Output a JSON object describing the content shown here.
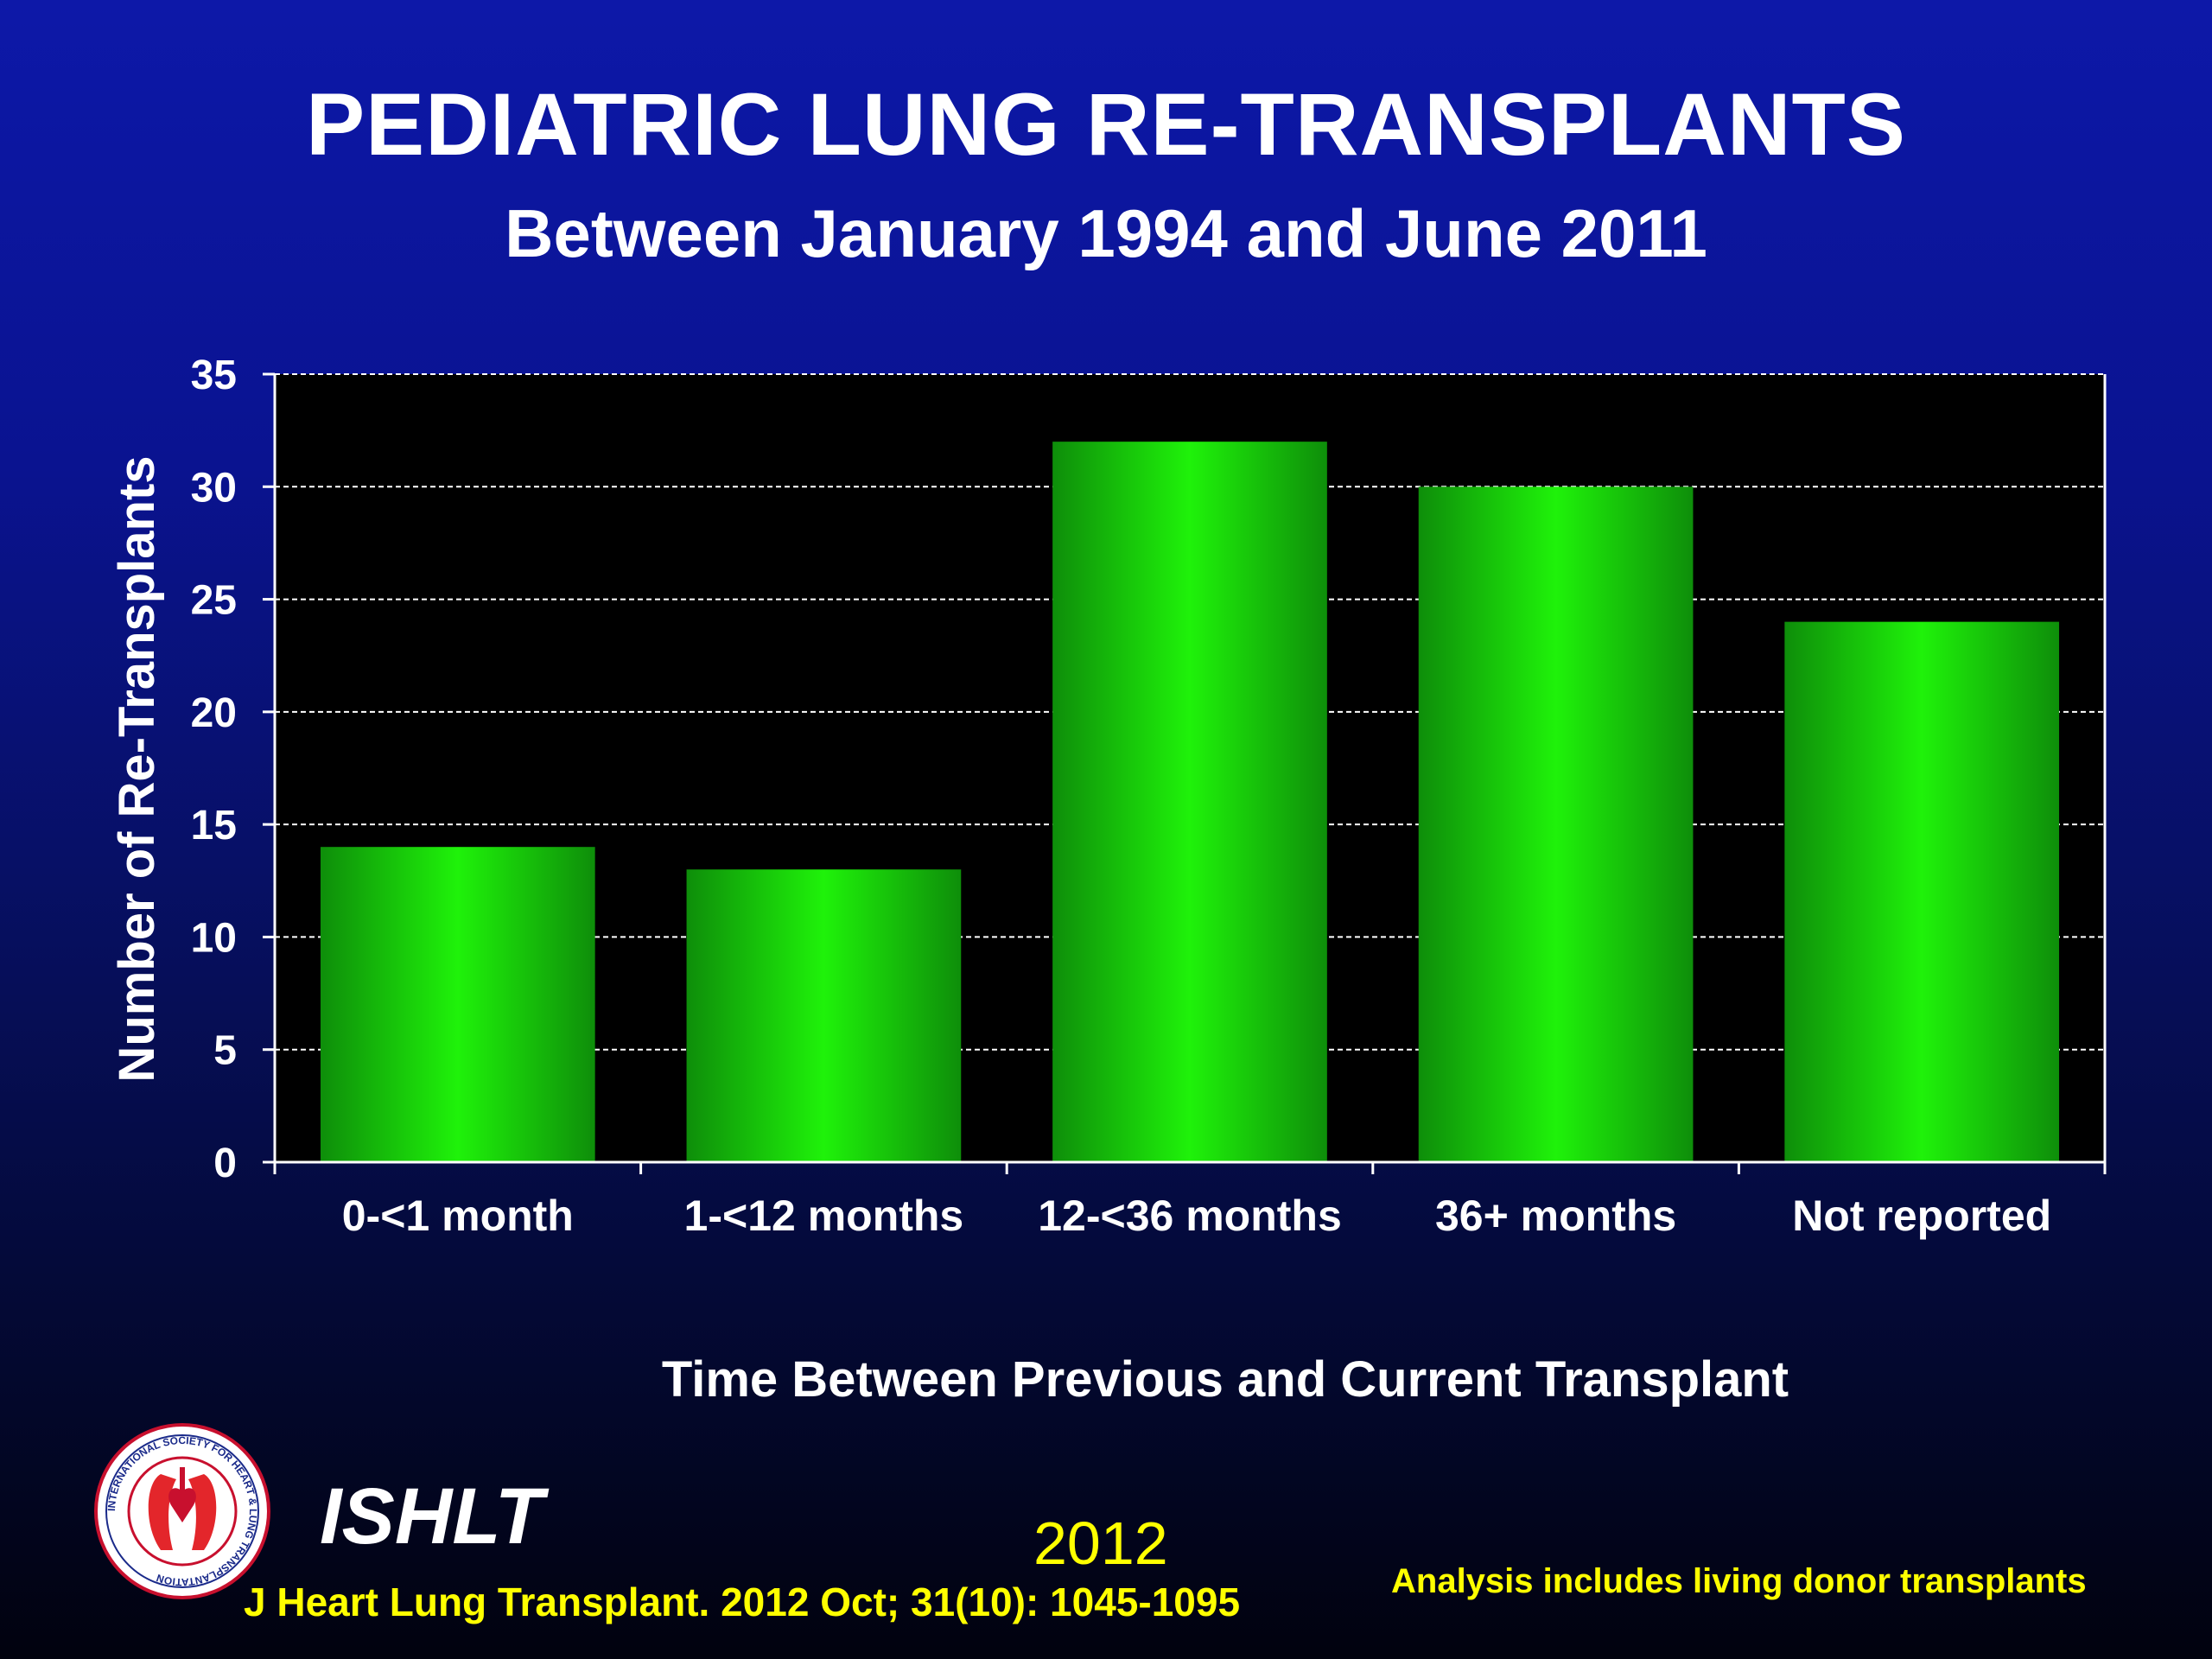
{
  "title": "PEDIATRIC LUNG RE-TRANSPLANTS",
  "subtitle": "Between January 1994 and June 2011",
  "chart_data": {
    "type": "bar",
    "categories": [
      "0-<1 month",
      "1-<12 months",
      "12-<36 months",
      "36+ months",
      "Not reported"
    ],
    "values": [
      14,
      13,
      32,
      30,
      24
    ],
    "xlabel": "Time Between Previous and Current Transplant",
    "ylabel": "Number of Re-Transplants",
    "ylim": [
      0,
      35
    ],
    "yticks": [
      0,
      5,
      10,
      15,
      20,
      25,
      30,
      35
    ],
    "grid": true,
    "plot_background": "#000000",
    "bar_color": "#1ff20a"
  },
  "footer": {
    "logo_name": "ISHLT",
    "logo_text": "INTERNATIONAL SOCIETY FOR HEART & LUNG TRANSPLANTATION",
    "year": "2012",
    "citation": "J Heart Lung Transplant.  2012 Oct; 31(10): 1045-1095",
    "note": "Analysis includes living donor transplants"
  },
  "colors": {
    "background_top": "#0d18a8",
    "background_bottom": "#01020e",
    "footer_text": "#ffff00"
  }
}
